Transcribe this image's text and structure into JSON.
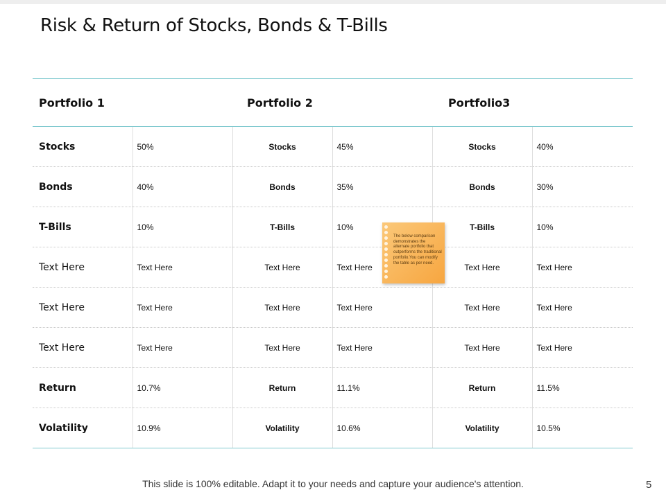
{
  "title": "Risk & Return of Stocks, Bonds & T-Bills",
  "table": {
    "headers": [
      "Portfolio 1",
      "Portfolio 2",
      "Portfolio3"
    ],
    "rows": [
      {
        "label": "Stocks",
        "bold": true,
        "cells": [
          "50%",
          "Stocks",
          "45%",
          "Stocks",
          "40%"
        ]
      },
      {
        "label": "Bonds",
        "bold": true,
        "cells": [
          "40%",
          "Bonds",
          "35%",
          "Bonds",
          "30%"
        ]
      },
      {
        "label": "T-Bills",
        "bold": true,
        "cells": [
          "10%",
          "T-Bills",
          "10%",
          "T-Bills",
          "10%"
        ]
      },
      {
        "label": "Text Here",
        "bold": false,
        "cells": [
          "Text Here",
          "Text Here",
          "Text Here",
          "Text Here",
          "Text Here"
        ]
      },
      {
        "label": "Text Here",
        "bold": false,
        "cells": [
          "Text Here",
          "Text Here",
          "Text Here",
          "Text Here",
          "Text Here"
        ]
      },
      {
        "label": "Text Here",
        "bold": false,
        "cells": [
          "Text Here",
          "Text Here",
          "Text Here",
          "Text Here",
          "Text Here"
        ]
      },
      {
        "label": "Return",
        "bold": true,
        "cells": [
          "10.7%",
          "Return",
          "11.1%",
          "Return",
          "11.5%"
        ]
      },
      {
        "label": "Volatility",
        "bold": true,
        "cells": [
          "10.9%",
          "Volatility",
          "10.6%",
          "Volatility",
          "10.5%"
        ]
      }
    ]
  },
  "sticky_note": {
    "text": "The below comparison demonstrates the alternate portfolio that outperforms the traditional portfolio.You can modify the table as per need.",
    "color": "#f9b55a"
  },
  "footer": "This slide is 100% editable. Adapt it to your needs and capture your audience's attention.",
  "page_number": "5"
}
